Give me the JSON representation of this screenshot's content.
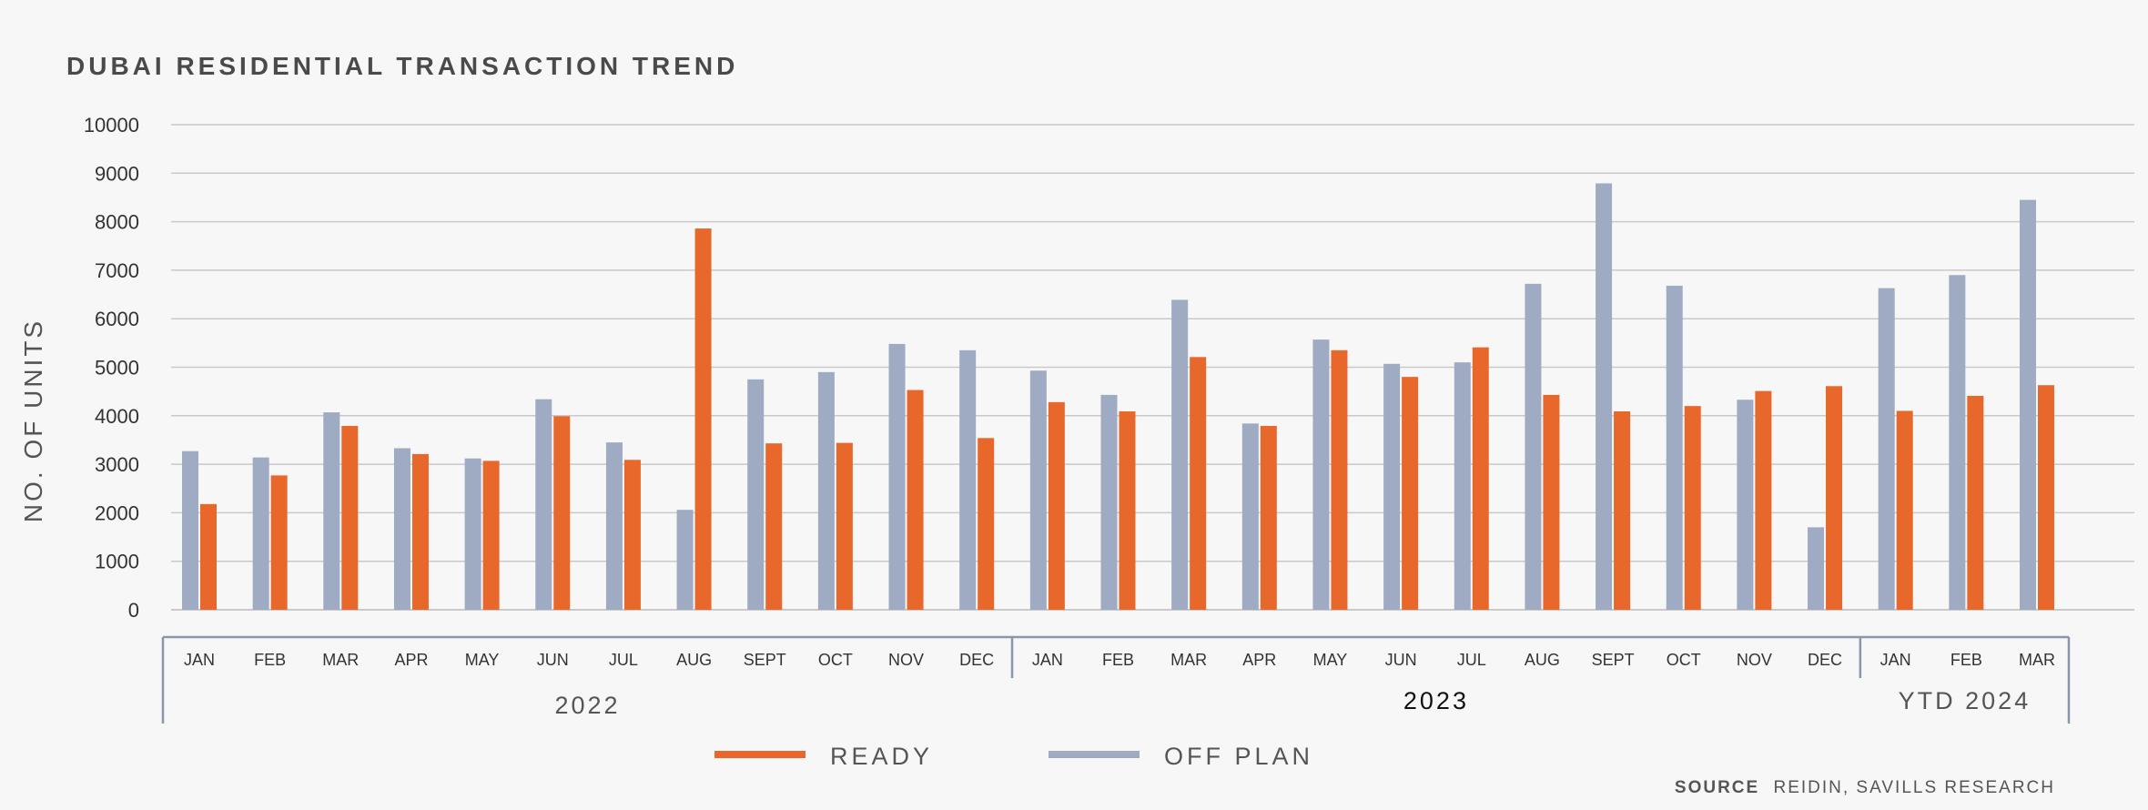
{
  "chart_data": {
    "type": "bar",
    "title": "DUBAI RESIDENTIAL TRANSACTION TREND",
    "ylabel": "NO. OF UNITS",
    "ylim": [
      0,
      10000
    ],
    "yticks": [
      0,
      1000,
      2000,
      3000,
      4000,
      5000,
      6000,
      7000,
      8000,
      9000,
      10000
    ],
    "grid": true,
    "legend_position": "bottom-center",
    "categories": [
      "JAN",
      "FEB",
      "MAR",
      "APR",
      "MAY",
      "JUN",
      "JUL",
      "AUG",
      "SEPT",
      "OCT",
      "NOV",
      "DEC",
      "JAN",
      "FEB",
      "MAR",
      "APR",
      "MAY",
      "JUN",
      "JUL",
      "AUG",
      "SEPT",
      "OCT",
      "NOV",
      "DEC",
      "JAN",
      "FEB",
      "MAR"
    ],
    "groups": [
      {
        "label": "2022",
        "count": 12
      },
      {
        "label": "2023",
        "count": 12
      },
      {
        "label": "YTD 2024",
        "count": 3
      }
    ],
    "series": [
      {
        "name": "OFF PLAN",
        "color": "#9eabc2",
        "values": [
          3270,
          3140,
          4070,
          3330,
          3120,
          4340,
          3450,
          2060,
          4750,
          4900,
          5480,
          5350,
          4930,
          4430,
          6390,
          3840,
          5570,
          5070,
          5100,
          6720,
          8790,
          6680,
          4330,
          1700,
          6630,
          6900,
          8450
        ]
      },
      {
        "name": "READY",
        "color": "#e8672a",
        "values": [
          2180,
          2770,
          3790,
          3210,
          3070,
          3990,
          3090,
          7860,
          3430,
          3440,
          4530,
          3540,
          4280,
          4090,
          5210,
          3790,
          5350,
          4800,
          5410,
          4430,
          4090,
          4200,
          4510,
          4610,
          4100,
          4410,
          4630
        ]
      }
    ],
    "legend": [
      {
        "name": "READY",
        "color": "#e8672a"
      },
      {
        "name": "OFF PLAN",
        "color": "#9eabc2"
      }
    ]
  },
  "source": {
    "bold": "SOURCE",
    "text": "REIDIN, SAVILLS RESEARCH"
  }
}
